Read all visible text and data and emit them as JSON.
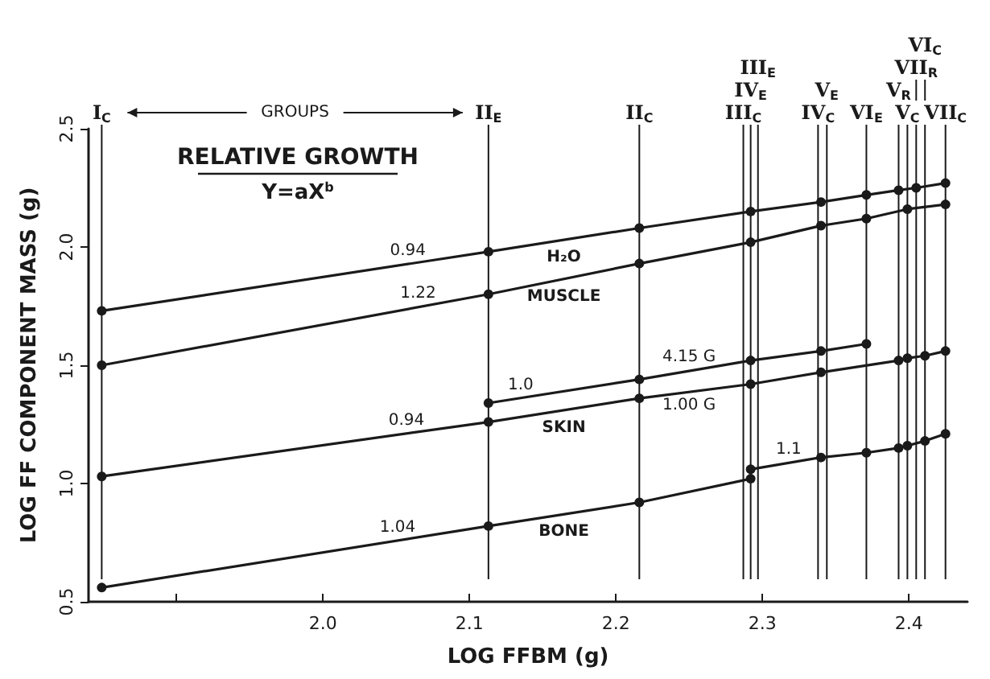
{
  "chart_data": {
    "type": "line",
    "xlabel": "LOG FFBM (g)",
    "ylabel": "LOG FF COMPONENT MASS (g)",
    "xlim": [
      1.84,
      2.44
    ],
    "xticks": [
      {
        "value": 1.9,
        "label": null
      },
      {
        "value": 2,
        "label": "2.0"
      },
      2.1,
      2.2,
      2.3,
      2.4
    ],
    "ylim": [
      0.5,
      2.5
    ],
    "yticks": [
      0.5,
      {
        "value": 1,
        "label": "1.0"
      },
      1.5,
      {
        "value": 2,
        "label": "2.0"
      },
      2.5
    ],
    "grid": false,
    "legend": false,
    "marker": "circle",
    "series": [
      {
        "name": "H₂O",
        "color": "#1a1a1a",
        "x": [
          1.849,
          2.113,
          2.216,
          2.292,
          2.34,
          2.371,
          2.393,
          2.405,
          2.425
        ],
        "values": [
          1.73,
          1.98,
          2.08,
          2.15,
          2.19,
          2.22,
          2.24,
          2.25,
          2.27
        ]
      },
      {
        "name": "MUSCLE",
        "color": "#1a1a1a",
        "x": [
          1.849,
          2.113,
          2.216,
          2.292,
          2.34,
          2.371,
          2.399,
          2.425
        ],
        "values": [
          1.5,
          1.8,
          1.93,
          2.02,
          2.09,
          2.12,
          2.16,
          2.18
        ]
      },
      {
        "color": "#1a1a1a",
        "x": [
          2.113,
          2.216,
          2.292,
          2.34,
          2.371
        ],
        "values": [
          1.34,
          1.44,
          1.52,
          1.56,
          1.59
        ]
      },
      {
        "name": "SKIN",
        "color": "#1a1a1a",
        "x": [
          1.849,
          2.113,
          2.216,
          2.292,
          2.34,
          2.393,
          2.399,
          2.411,
          2.425
        ],
        "values": [
          1.03,
          1.26,
          1.36,
          1.42,
          1.47,
          1.52,
          1.53,
          1.54,
          1.56
        ]
      },
      {
        "name": "BONE",
        "color": "#1a1a1a",
        "x": [
          1.849,
          2.113,
          2.216,
          2.292
        ],
        "values": [
          0.56,
          0.82,
          0.92,
          1.02
        ]
      },
      {
        "color": "#1a1a1a",
        "x": [
          2.292,
          2.34,
          2.371,
          2.393,
          2.399,
          2.411,
          2.425
        ],
        "values": [
          1.06,
          1.11,
          1.13,
          1.15,
          1.16,
          1.18,
          1.21
        ]
      }
    ],
    "ref_lines": [
      {
        "axis": "x",
        "value": 1.849,
        "label": "I$_{C}$"
      },
      {
        "axis": "x",
        "value": 2.113,
        "label": "II$_{E}$"
      },
      {
        "axis": "x",
        "value": 2.216,
        "label": "II$_{C}$"
      },
      {
        "axis": "x",
        "value": 2.287,
        "label": "III$_{C}$"
      },
      {
        "axis": "x",
        "value": 2.292,
        "label": "IV$_{E}$"
      },
      {
        "axis": "x",
        "value": 2.297,
        "label": "III$_{E}$"
      },
      {
        "axis": "x",
        "value": 2.338,
        "label": "IV$_{C}$"
      },
      {
        "axis": "x",
        "value": 2.344,
        "label": "V$_{E}$"
      },
      {
        "axis": "x",
        "value": 2.371,
        "label": "VI$_{E}$"
      },
      {
        "axis": "x",
        "value": 2.393,
        "label": "V$_{R}$"
      },
      {
        "axis": "x",
        "value": 2.399,
        "label": "V$_{C}$"
      },
      {
        "axis": "x",
        "value": 2.405,
        "label": "VII$_{R}$"
      },
      {
        "axis": "x",
        "value": 2.411,
        "label": "VI$_{C}$"
      },
      {
        "axis": "x",
        "value": 2.425,
        "label": "VII$_{C}$"
      }
    ],
    "annotations": [
      "GROUPS",
      "RELATIVE GROWTH",
      "Y=aX$^{b}$",
      {
        "text": "0.94",
        "x": 2.058,
        "y": 1.93
      },
      {
        "text": "1.22",
        "x": 2.065,
        "y": 1.75
      },
      {
        "text": "1.0",
        "x": 2.135,
        "y": 1.36
      },
      {
        "text": "4.15 G",
        "x": 2.25,
        "y": 1.48
      },
      {
        "text": "0.94",
        "x": 2.057,
        "y": 1.21
      },
      {
        "text": "1.00 G",
        "x": 2.25,
        "y": 1.39
      },
      {
        "text": "1.04",
        "x": 2.051,
        "y": 0.76
      },
      {
        "text": "1.1",
        "x": 2.318,
        "y": 1.09
      }
    ]
  }
}
